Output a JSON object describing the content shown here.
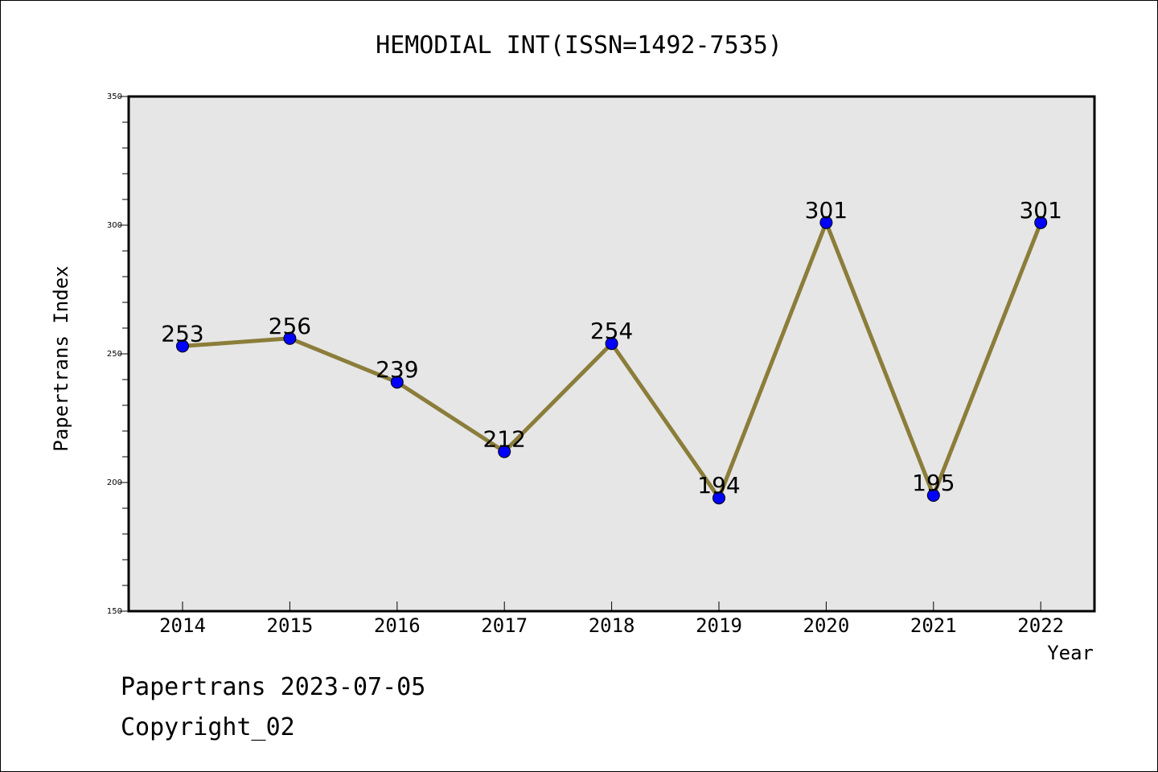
{
  "chart_data": {
    "type": "line",
    "title": "HEMODIAL INT(ISSN=1492-7535)",
    "xlabel": "Year",
    "ylabel": "Papertrans Index",
    "categories": [
      "2014",
      "2015",
      "2016",
      "2017",
      "2018",
      "2019",
      "2020",
      "2021",
      "2022"
    ],
    "series": [
      {
        "values": [
          253,
          256,
          239,
          212,
          254,
          194,
          301,
          195,
          301
        ]
      }
    ],
    "data_labels": [
      "253",
      "256",
      "239",
      "212",
      "254",
      "194",
      "301",
      "195",
      "301"
    ],
    "ylim": [
      150,
      350
    ],
    "yticks": [
      "150",
      "200",
      "250",
      "300",
      "350"
    ],
    "grid": false,
    "line_color": "#8b7d3a",
    "marker_color": "#0000ff",
    "plot_background": "#e6e6e6"
  },
  "footer": {
    "line1": "Papertrans 2023-07-05",
    "line2": "Copyright_02"
  }
}
